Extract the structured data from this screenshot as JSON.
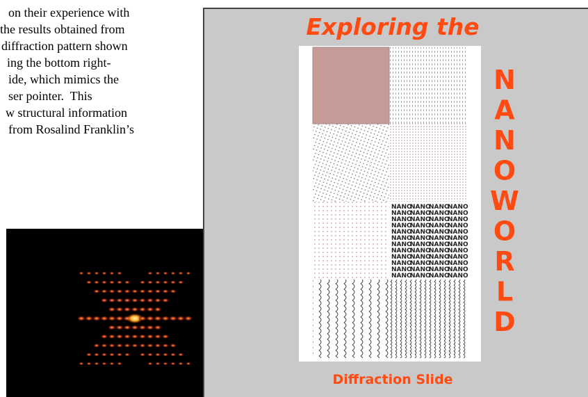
{
  "text": {
    "lines": [
      "on their experience with",
      "the results obtained from",
      "diffraction pattern shown",
      "ing the bottom right-",
      "ide, which mimics the",
      "ser pointer.  This",
      "w structural information",
      "from Rosalind Franklin’s"
    ]
  },
  "slide": {
    "title": "Exploring the",
    "letters": [
      "N",
      "A",
      "N",
      "O",
      "W",
      "O",
      "R",
      "L",
      "D"
    ],
    "caption": "Diffraction Slide",
    "cell_text": "NANO"
  }
}
